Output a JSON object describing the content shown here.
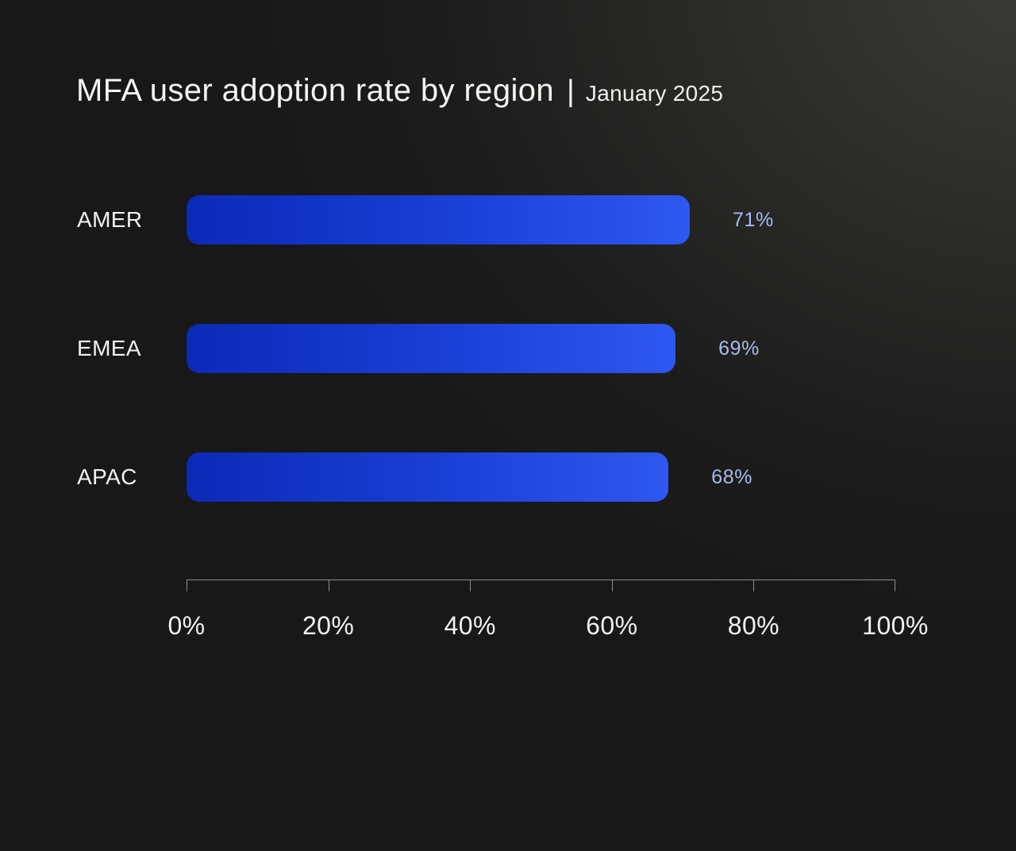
{
  "title": {
    "main": "MFA user adoption rate by region",
    "separator": "|",
    "subtitle": "January 2025"
  },
  "chart_data": {
    "type": "bar",
    "orientation": "horizontal",
    "title": "MFA user adoption rate by region",
    "subtitle": "January 2025",
    "categories": [
      "AMER",
      "EMEA",
      "APAC"
    ],
    "values": [
      71,
      69,
      68
    ],
    "value_labels": [
      "71%",
      "69%",
      "68%"
    ],
    "xlabel": "",
    "ylabel": "",
    "xlim": [
      0,
      100
    ],
    "x_tick_labels": [
      "0%",
      "20%",
      "40%",
      "60%",
      "80%",
      "100%"
    ],
    "x_tick_positions": [
      0,
      20,
      40,
      60,
      80,
      100
    ],
    "grid": false,
    "legend": false
  },
  "colors": {
    "background_dark": "#181818",
    "background_glow": "#3b3b37",
    "bar_gradient_start": "#0b2ab6",
    "bar_gradient_end": "#2f58f2",
    "value_label": "#a7bbf0",
    "text_primary": "#f5f4f2",
    "axis_line": "#8e8e8e"
  }
}
